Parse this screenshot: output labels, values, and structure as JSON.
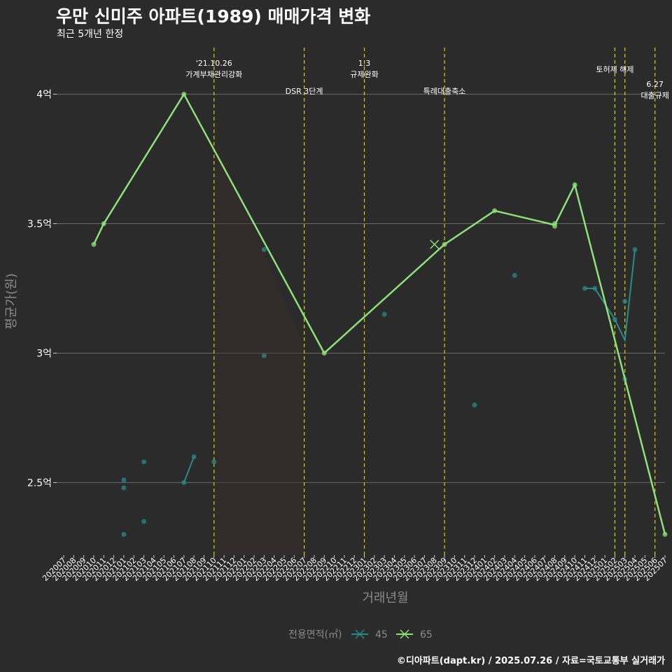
{
  "title": "우만 신미주 아파트(1989) 매매가격 변화",
  "subtitle": "최근 5개년 한정",
  "caption": "©디아파트(dapt.kr) / 2025.07.26 / 자료=국토교통부 실거래가",
  "chart_data": {
    "type": "line",
    "title": "우만 신미주 아파트(1989) 매매가격 변화",
    "subtitle": "최근 5개년 한정",
    "xlabel": "거래년월",
    "ylabel": "평균가(원)",
    "ylim": [
      2.22,
      4.18
    ],
    "yticks": [
      2.5,
      3,
      3.5,
      4
    ],
    "ytick_labels": [
      "2.5억",
      "3억",
      "3.5억",
      "4억"
    ],
    "grid": true,
    "legend_position": "bottom",
    "legend_title": "전용면적(㎡)",
    "categories": [
      "202007",
      "202008",
      "202009",
      "202010",
      "202011",
      "202012",
      "202101",
      "202102",
      "202103",
      "202104",
      "202105",
      "202106",
      "202107",
      "202108",
      "202109",
      "202110",
      "202111",
      "202112",
      "202201",
      "202202",
      "202203",
      "202204",
      "202205",
      "202206",
      "202207",
      "202208",
      "202209",
      "202210",
      "202211",
      "202212",
      "202301",
      "202302",
      "202303",
      "202304",
      "202305",
      "202306",
      "202307",
      "202308",
      "202309",
      "202310",
      "202311",
      "202312",
      "202401",
      "202402",
      "202403",
      "202404",
      "202405",
      "202406",
      "202407",
      "202408",
      "202409",
      "202410",
      "202411",
      "202412",
      "202501",
      "202502",
      "202503",
      "202504",
      "202505",
      "202506",
      "202507"
    ],
    "series": [
      {
        "name": "45",
        "color": "#2a8a8a",
        "points": [
          {
            "x": "202101",
            "y": 2.3
          },
          {
            "x": "202101",
            "y": 2.48
          },
          {
            "x": "202101",
            "y": 2.51
          },
          {
            "x": "202103",
            "y": 2.35
          },
          {
            "x": "202103",
            "y": 2.58
          },
          {
            "x": "202107",
            "y": 2.5
          },
          {
            "x": "202108",
            "y": 2.6
          },
          {
            "x": "202110",
            "y": 2.58
          },
          {
            "x": "202203",
            "y": 2.99
          },
          {
            "x": "202203",
            "y": 3.4
          },
          {
            "x": "202303",
            "y": 3.15
          },
          {
            "x": "202312",
            "y": 2.8
          },
          {
            "x": "202404",
            "y": 3.3
          },
          {
            "x": "202411",
            "y": 3.25
          },
          {
            "x": "202412",
            "y": 3.25
          },
          {
            "x": "202502",
            "y": 3.13
          },
          {
            "x": "202503",
            "y": 2.9
          },
          {
            "x": "202503",
            "y": 3.2
          },
          {
            "x": "202504",
            "y": 3.4
          }
        ],
        "line": [
          {
            "x": "202107",
            "y": 2.5
          },
          {
            "x": "202108",
            "y": 2.6
          },
          {
            "x": "202411",
            "y": 3.25
          },
          {
            "x": "202412",
            "y": 3.25
          },
          {
            "x": "202502",
            "y": 3.13
          },
          {
            "x": "202503",
            "y": 3.05
          },
          {
            "x": "202504",
            "y": 3.4
          }
        ]
      },
      {
        "name": "65",
        "color": "#8ee07a",
        "points": [
          {
            "x": "202010",
            "y": 3.42
          },
          {
            "x": "202011",
            "y": 3.5
          },
          {
            "x": "202107",
            "y": 4.0
          },
          {
            "x": "202209",
            "y": 3.0
          },
          {
            "x": "202309",
            "y": 3.42
          },
          {
            "x": "202402",
            "y": 3.55
          },
          {
            "x": "202408",
            "y": 3.5
          },
          {
            "x": "202408",
            "y": 3.49
          },
          {
            "x": "202410",
            "y": 3.65
          },
          {
            "x": "202507",
            "y": 2.3
          }
        ],
        "line": [
          {
            "x": "202010",
            "y": 3.42
          },
          {
            "x": "202011",
            "y": 3.5
          },
          {
            "x": "202107",
            "y": 4.0
          },
          {
            "x": "202209",
            "y": 3.0
          },
          {
            "x": "202309",
            "y": 3.42
          },
          {
            "x": "202402",
            "y": 3.55
          },
          {
            "x": "202408",
            "y": 3.495
          },
          {
            "x": "202410",
            "y": 3.65
          },
          {
            "x": "202507",
            "y": 2.3
          }
        ],
        "cross_marker": {
          "x": "202308",
          "y": 3.42
        }
      }
    ],
    "annotations": [
      {
        "x": "202110",
        "lines": [
          "'21.10.26",
          "가계부채관리강화"
        ],
        "row": 0
      },
      {
        "x": "202207",
        "lines": [
          "DSR 3단계"
        ],
        "row": 2
      },
      {
        "x": "202301",
        "lines": [
          "1.3",
          "규제완화"
        ],
        "row": 0
      },
      {
        "x": "202309",
        "lines": [
          "특례대출축소"
        ],
        "row": 2
      },
      {
        "x": "202502",
        "lines": [
          "토허제 해제"
        ],
        "row": 1
      },
      {
        "x": "202503",
        "lines": [],
        "row": 1
      },
      {
        "x": "202506",
        "lines": [
          "6.27",
          "대출규제"
        ],
        "row": 3
      }
    ],
    "vline_color": "#d4d400"
  }
}
